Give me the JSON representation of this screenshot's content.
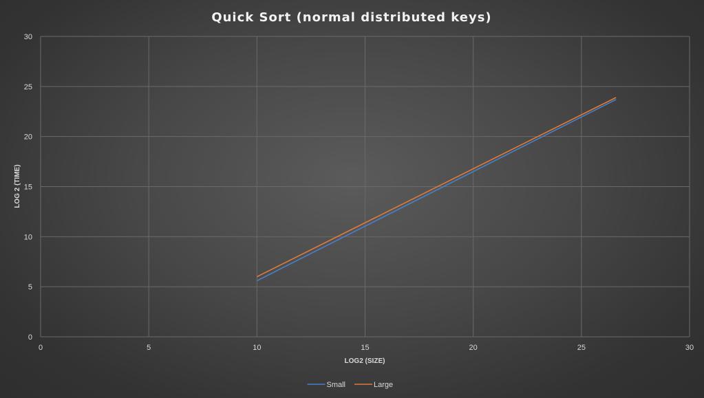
{
  "chart_data": {
    "type": "line",
    "title": "Quick Sort (normal distributed keys)",
    "xlabel": "LOG2 (SIZE)",
    "ylabel": "LOG 2 (TIME)",
    "xlim": [
      0,
      30
    ],
    "ylim": [
      0,
      30
    ],
    "x_ticks": [
      0,
      5,
      10,
      15,
      20,
      25,
      30
    ],
    "y_ticks": [
      0,
      5,
      10,
      15,
      20,
      25,
      30
    ],
    "grid": true,
    "legend_position": "bottom",
    "series": [
      {
        "name": "Small",
        "color": "#4a7fc9",
        "x": [
          10,
          26.6
        ],
        "y": [
          5.6,
          23.7
        ]
      },
      {
        "name": "Large",
        "color": "#e07b39",
        "x": [
          10,
          26.6
        ],
        "y": [
          6.0,
          23.9
        ]
      }
    ]
  }
}
